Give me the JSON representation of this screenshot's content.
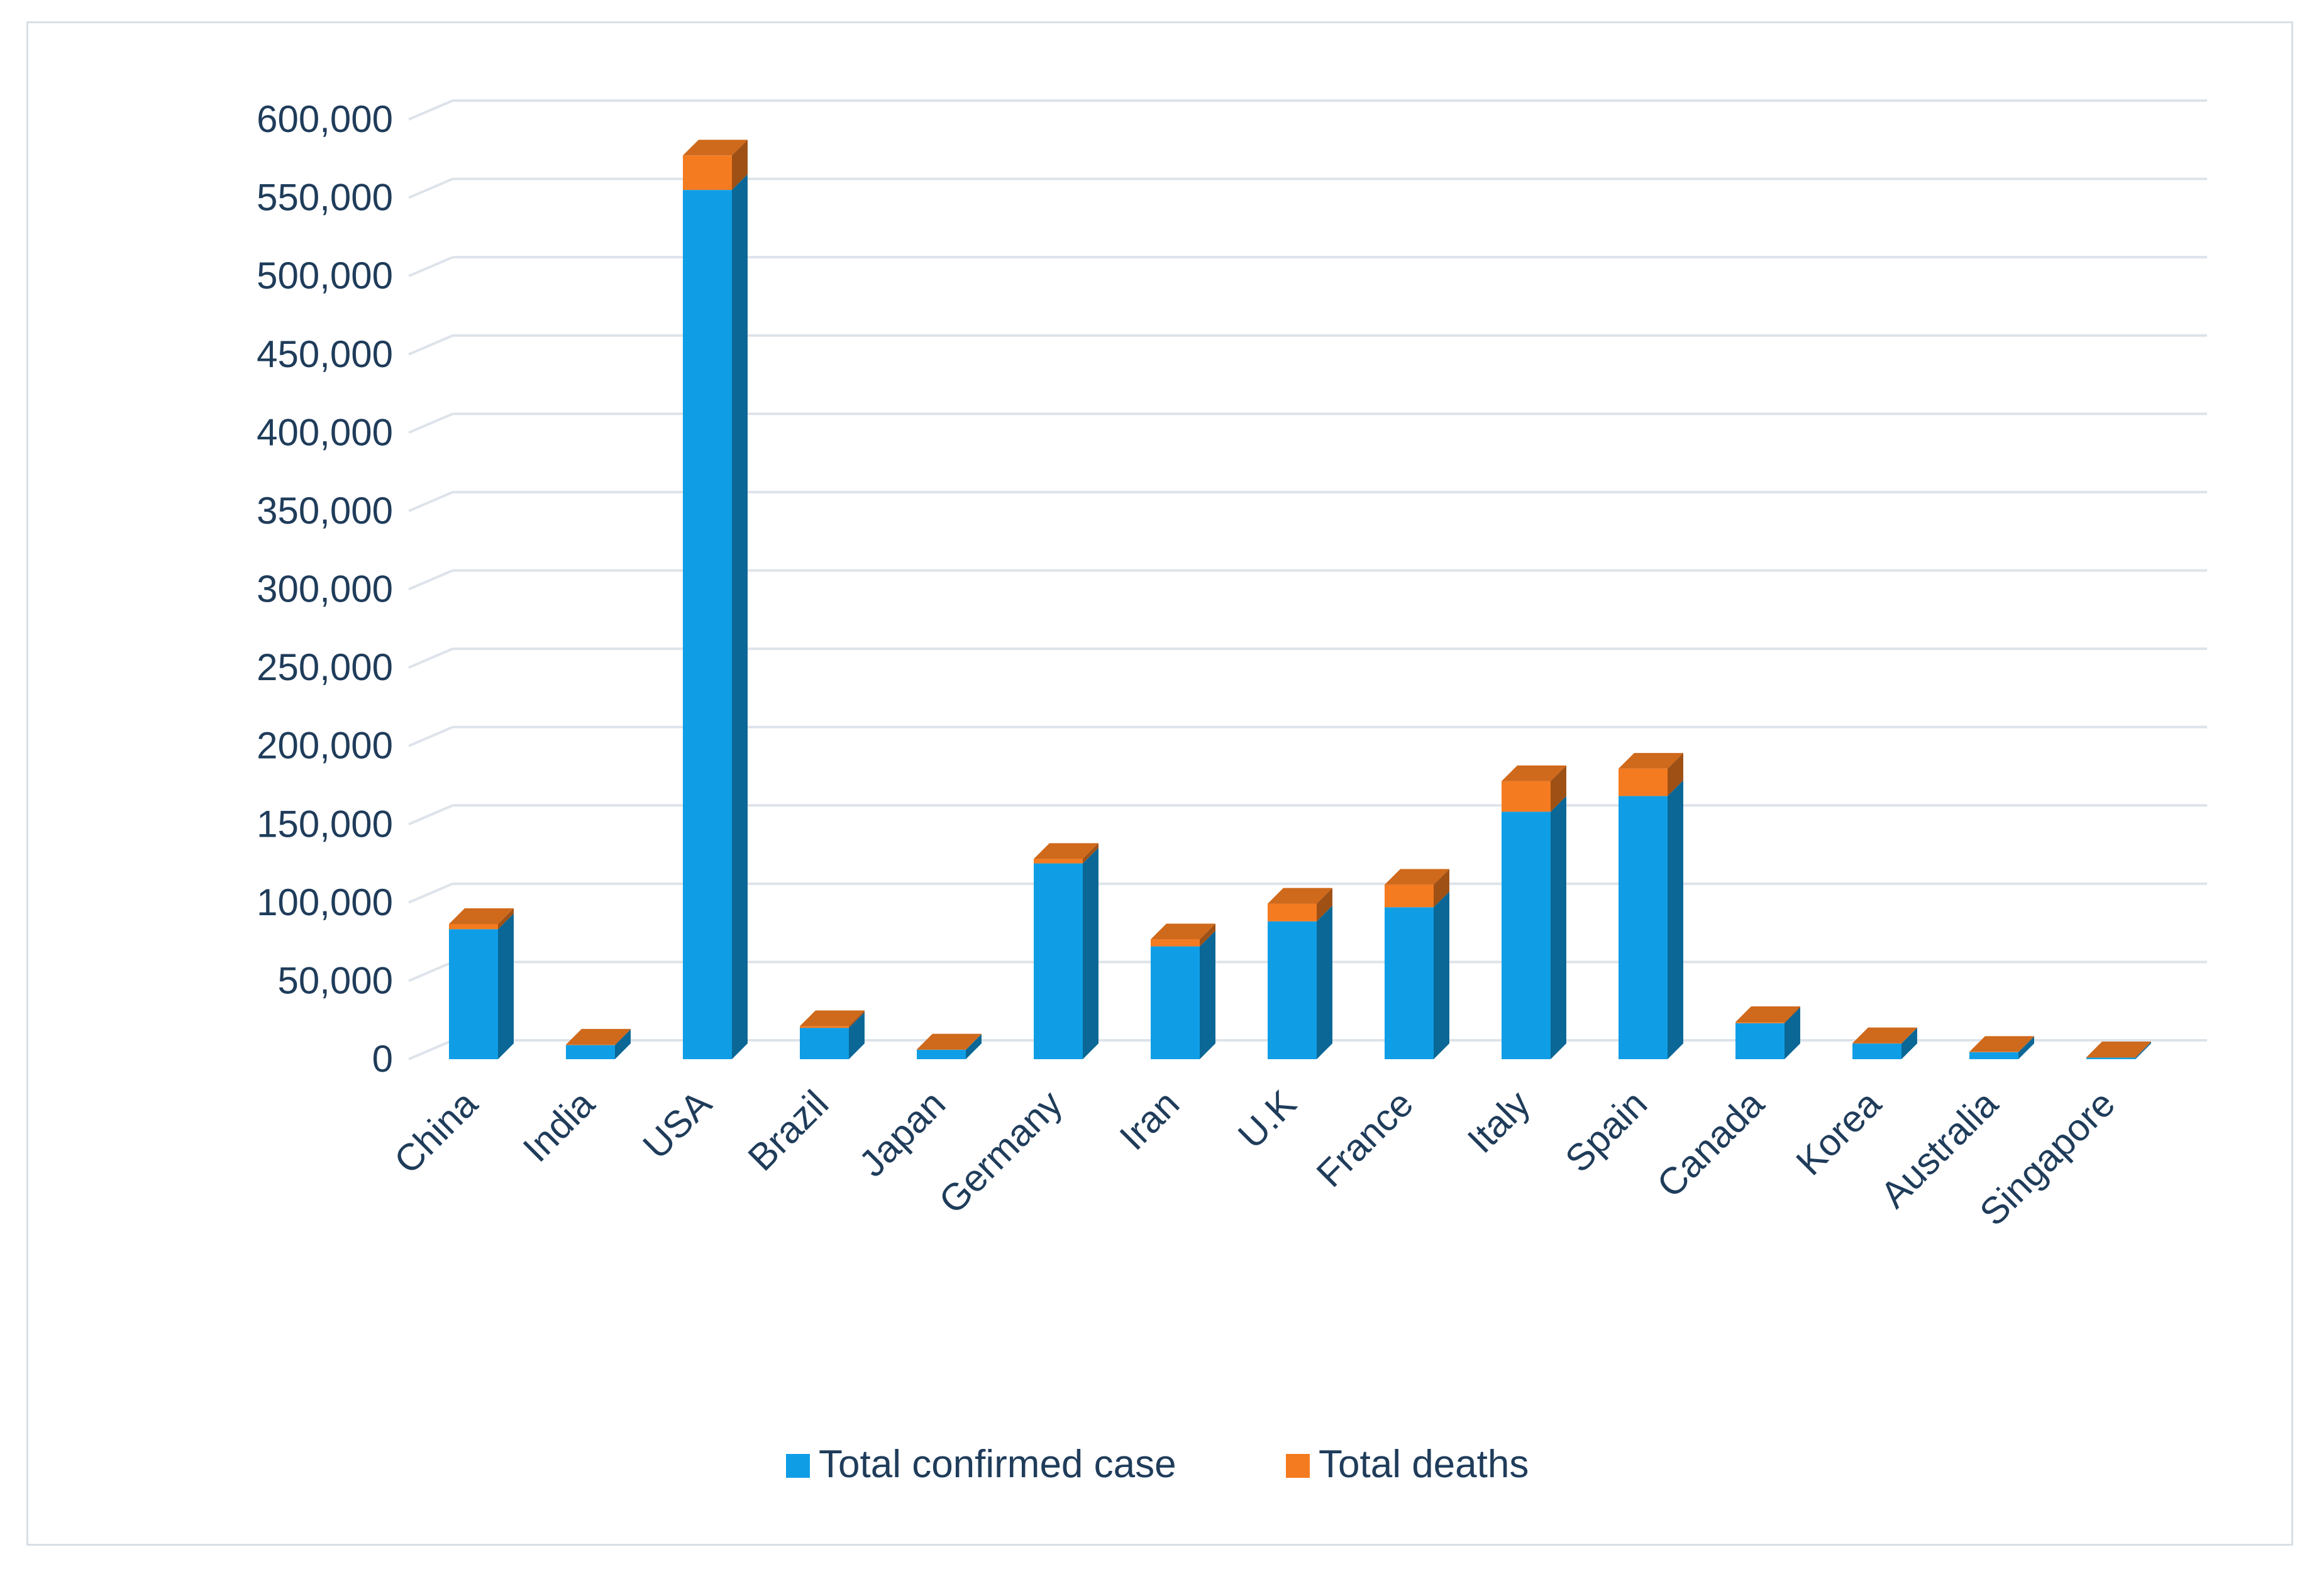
{
  "chart_data": {
    "type": "bar",
    "stacked": true,
    "style": "3d-column",
    "title": "",
    "xlabel": "",
    "ylabel": "",
    "categories": [
      "China",
      "India",
      "USA",
      "Brazil",
      "Japan",
      "Germany",
      "Iran",
      "U.K",
      "France",
      "Italy",
      "Spain",
      "Canada",
      "Korea",
      "Australia",
      "Singapore"
    ],
    "series": [
      {
        "name": "Total confirmed case",
        "color": "#0f9ee6",
        "values": [
          83000,
          9000,
          555000,
          20000,
          6000,
          125000,
          72000,
          88000,
          97000,
          158000,
          168000,
          23000,
          10000,
          4500,
          1000
        ]
      },
      {
        "name": "Total deaths",
        "color": "#f47b20",
        "values": [
          3300,
          300,
          22000,
          1100,
          100,
          2900,
          4500,
          11300,
          14400,
          19500,
          17500,
          700,
          200,
          50,
          5
        ]
      }
    ],
    "ylim": [
      0,
      600000
    ],
    "yticks": [
      0,
      50000,
      100000,
      150000,
      200000,
      250000,
      300000,
      350000,
      400000,
      450000,
      500000,
      550000,
      600000
    ],
    "ytick_labels": [
      "0",
      "50,000",
      "100,000",
      "150,000",
      "200,000",
      "250,000",
      "300,000",
      "350,000",
      "400,000",
      "450,000",
      "500,000",
      "550,000",
      "600,000"
    ],
    "grid": true,
    "legend": "bottom-center"
  }
}
